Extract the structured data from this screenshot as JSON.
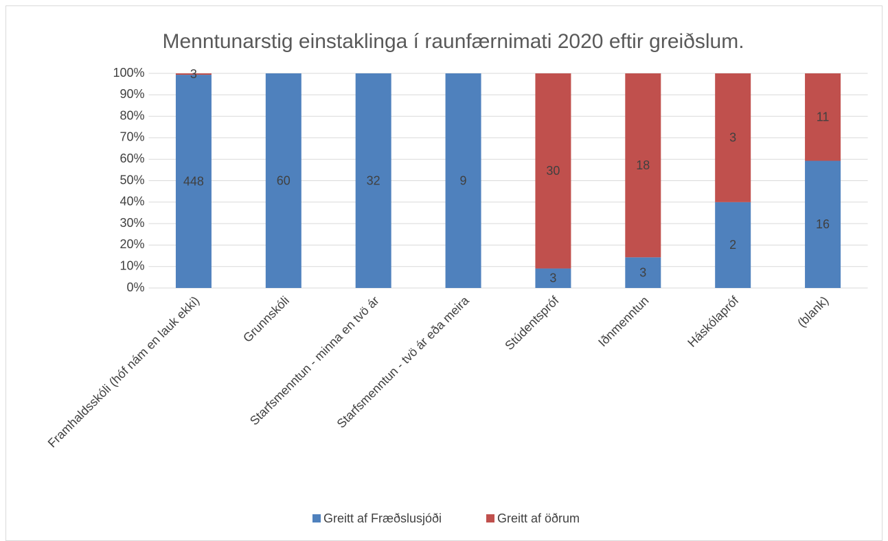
{
  "chart_data": {
    "type": "stacked_percent_bar",
    "title": "Menntunarstig einstaklinga í raunfærnimati 2020 eftir greiðslum.",
    "categories": [
      "Framhaldsskóli (hóf nám en lauk ekki)",
      "Grunnskóli",
      "Starfsmenntun - minna en tvö ár",
      "Starfsmenntun - tvö ár eða meira",
      "Stúdentspróf",
      "Iðnmenntun",
      "Háskólapróf",
      "(blank)"
    ],
    "series": [
      {
        "name": "Greitt af Fræðslusjóði",
        "color": "#4f81bd",
        "values": [
          448,
          60,
          32,
          9,
          3,
          3,
          2,
          16
        ]
      },
      {
        "name": "Greitt af öðrum",
        "color": "#c0504d",
        "values": [
          3,
          null,
          null,
          null,
          30,
          18,
          3,
          11
        ]
      }
    ],
    "ylim": [
      0,
      100
    ],
    "yticks": [
      {
        "value": 0,
        "label": "0%"
      },
      {
        "value": 10,
        "label": "10%"
      },
      {
        "value": 20,
        "label": "20%"
      },
      {
        "value": 30,
        "label": "30%"
      },
      {
        "value": 40,
        "label": "40%"
      },
      {
        "value": 50,
        "label": "50%"
      },
      {
        "value": 60,
        "label": "60%"
      },
      {
        "value": 70,
        "label": "70%"
      },
      {
        "value": 80,
        "label": "80%"
      },
      {
        "value": 90,
        "label": "90%"
      },
      {
        "value": 100,
        "label": "100%"
      }
    ],
    "grid": true,
    "legend": "bottom"
  }
}
